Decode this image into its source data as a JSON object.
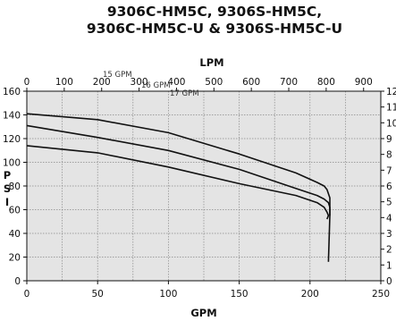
{
  "chart_data": {
    "type": "line",
    "title_lines": [
      "9306C-HM5C, 9306S-HM5C,",
      "9306C-HM5C-U & 9306S-HM5C-U"
    ],
    "xlabel": "GPM",
    "x2label": "LPM",
    "ylabel": "PSI",
    "xlim": [
      0,
      250
    ],
    "x2lim": [
      0,
      946
    ],
    "ylim": [
      0,
      160
    ],
    "y2lim": [
      0,
      12
    ],
    "x_ticks": [
      "0",
      "50",
      "100",
      "150",
      "200",
      "250"
    ],
    "x_tick_values": [
      0,
      50,
      100,
      150,
      200,
      250
    ],
    "x2_ticks": [
      "0",
      "100",
      "200",
      "300",
      "400",
      "500",
      "600",
      "700",
      "800",
      "900"
    ],
    "x2_tick_values": [
      0,
      100,
      200,
      300,
      400,
      500,
      600,
      700,
      800,
      900
    ],
    "y_ticks": [
      "0",
      "20",
      "40",
      "60",
      "80",
      "100",
      "120",
      "140",
      "160"
    ],
    "y_tick_values": [
      0,
      20,
      40,
      60,
      80,
      100,
      120,
      140,
      160
    ],
    "y2_ticks": [
      "0",
      "1",
      "2",
      "3",
      "4",
      "5",
      "6",
      "7",
      "8",
      "9",
      "10",
      "11",
      "12"
    ],
    "y2_tick_values": [
      0,
      1,
      2,
      3,
      4,
      5,
      6,
      7,
      8,
      9,
      10,
      11,
      12
    ],
    "grid": true,
    "series": [
      {
        "name": "17 GPM",
        "x": [
          0,
          50,
          100,
          150,
          190,
          205,
          210,
          212,
          214,
          214,
          213
        ],
        "y": [
          141,
          136,
          125,
          107,
          91,
          83,
          80,
          77,
          70,
          55,
          16
        ]
      },
      {
        "name": "16 GPM",
        "x": [
          0,
          50,
          100,
          150,
          190,
          205,
          210,
          213,
          214,
          214
        ],
        "y": [
          131,
          121,
          110,
          94,
          78,
          72,
          69,
          66,
          62,
          55
        ]
      },
      {
        "name": "15 GPM",
        "x": [
          0,
          50,
          100,
          150,
          190,
          205,
          210,
          212,
          213,
          212
        ],
        "y": [
          114,
          108,
          96,
          82,
          72,
          66,
          62,
          58,
          55,
          52
        ]
      }
    ],
    "colors": {
      "line": "#111111",
      "plot_bg": "#e4e4e4",
      "grid": "#888888"
    }
  }
}
